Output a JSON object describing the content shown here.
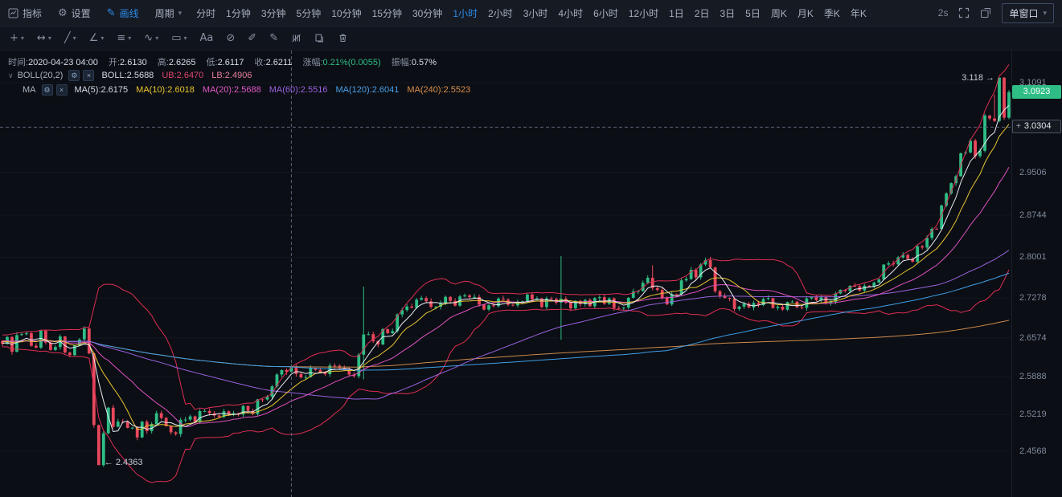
{
  "toolbar": {
    "indicator": "指标",
    "settings": "设置",
    "draw": "画线",
    "period": "周期",
    "periods": [
      "分时",
      "1分钟",
      "3分钟",
      "5分钟",
      "10分钟",
      "15分钟",
      "30分钟",
      "1小时",
      "2小时",
      "3小时",
      "4小时",
      "6小时",
      "12小时",
      "1日",
      "2日",
      "3日",
      "5日",
      "周K",
      "月K",
      "季K",
      "年K"
    ],
    "active_period": "1小时",
    "refresh": "2s",
    "window_mode": "单窗口"
  },
  "icons": {
    "settings": "⚙",
    "draw": "✎",
    "caret": "▾",
    "collapse": "∨",
    "gear_small": "⚙",
    "close_small": "×",
    "crosshair_badge_plus": "+"
  },
  "draw_tools": [
    {
      "name": "crosshair-tool",
      "glyph": "+",
      "caret": true
    },
    {
      "name": "horizontal-line-tool",
      "glyph": "↔",
      "caret": true
    },
    {
      "name": "trend-line-tool",
      "glyph": "╱",
      "caret": true
    },
    {
      "name": "angle-line-tool",
      "glyph": "∠",
      "caret": true
    },
    {
      "name": "parallel-lines-tool",
      "glyph": "≡",
      "caret": true
    },
    {
      "name": "wave-tool",
      "glyph": "∿",
      "caret": true
    },
    {
      "name": "shapes-tool",
      "glyph": "▭",
      "caret": true
    },
    {
      "name": "text-tool",
      "glyph": "Aa",
      "caret": false
    },
    {
      "name": "hide-drawings-tool",
      "glyph": "⊘",
      "caret": false
    },
    {
      "name": "eraser-tool",
      "glyph": "✐",
      "caret": false
    },
    {
      "name": "brush-tool",
      "glyph": "✎",
      "caret": false
    },
    {
      "name": "measure-tool",
      "glyph": "svg:measure",
      "caret": false
    },
    {
      "name": "copy-tool",
      "glyph": "svg:copy",
      "caret": false
    },
    {
      "name": "delete-tool",
      "glyph": "svg:trash",
      "caret": false
    }
  ],
  "info_bar": {
    "time_label": "时间:",
    "time": "2020-04-23 04:00",
    "open_label": "开:",
    "open": "2.6130",
    "high_label": "高:",
    "high": "2.6265",
    "low_label": "低:",
    "low": "2.6117",
    "close_label": "收:",
    "close": "2.6211",
    "change_label": "涨幅:",
    "change": "0.21%(0.0055)",
    "amplitude_label": "振幅:",
    "amplitude": "0.57%"
  },
  "indicator_panel": {
    "boll_title": "BOLL(20,2)",
    "boll_values": [
      {
        "text": "BOLL:2.5688",
        "color": "#d5dae3"
      },
      {
        "text": "UB:2.6470",
        "color": "#e0446e"
      },
      {
        "text": "LB:2.4906",
        "color": "#e87fa0"
      }
    ],
    "ma_title": "MA",
    "ma_values": [
      {
        "text": "MA(5):2.6175",
        "color": "#d5dae3"
      },
      {
        "text": "MA(10):2.6018",
        "color": "#e8c430"
      },
      {
        "text": "MA(20):2.5688",
        "color": "#e058c8"
      },
      {
        "text": "MA(60):2.5516",
        "color": "#9a62e0"
      },
      {
        "text": "MA(120):2.6041",
        "color": "#4a9fe8"
      },
      {
        "text": "MA(240):2.5523",
        "color": "#d98e4a"
      }
    ]
  },
  "chart_data": {
    "type": "candlestick",
    "timeframe": "1小时",
    "candle_count": 210,
    "price_top": 3.1659,
    "price_bottom": 2.3758,
    "axis_labels": [
      "3.1091",
      "2.9506",
      "2.8744",
      "2.8001",
      "2.7278",
      "2.6574",
      "2.5888",
      "2.5219",
      "2.4568"
    ],
    "last_price": "3.0923",
    "last_close": 3.0923,
    "crosshair": {
      "index": 60,
      "price": 3.0304,
      "label": "3.0304"
    },
    "annotations": [
      {
        "type": "high",
        "text": "3.118",
        "arrow": "→",
        "side": "left",
        "index": 207,
        "price": 3.118
      },
      {
        "type": "low",
        "text": "2.4363",
        "arrow": "←",
        "side": "right",
        "index": 20,
        "price": 2.4363
      }
    ],
    "overlays": {
      "ma_windows": [
        5,
        10,
        20,
        60,
        120,
        240
      ],
      "boll_window": 20,
      "boll_mult": 2
    },
    "colors": {
      "up": "#2ebd85",
      "down": "#e9485c",
      "ma5": "#e8ebf0",
      "ma10": "#e8c430",
      "ma20": "#e052c4",
      "ma60": "#9a62e0",
      "ma120": "#3f9fe8",
      "ma240": "#cc8a4c",
      "boll_band": "#dd2e55",
      "crosshair": "#5a6478",
      "grid": "#121720"
    },
    "anchors": [
      [
        0,
        2.655
      ],
      [
        2,
        2.638
      ],
      [
        4,
        2.662
      ],
      [
        6,
        2.642
      ],
      [
        8,
        2.668
      ],
      [
        10,
        2.64
      ],
      [
        12,
        2.655
      ],
      [
        14,
        2.63
      ],
      [
        16,
        2.646
      ],
      [
        17,
        2.628
      ],
      [
        18,
        2.565
      ],
      [
        19,
        2.478
      ],
      [
        20,
        2.45
      ],
      [
        21,
        2.505
      ],
      [
        22,
        2.532
      ],
      [
        23,
        2.498
      ],
      [
        24,
        2.516
      ],
      [
        26,
        2.5
      ],
      [
        28,
        2.478
      ],
      [
        30,
        2.506
      ],
      [
        32,
        2.522
      ],
      [
        34,
        2.508
      ],
      [
        36,
        2.49
      ],
      [
        38,
        2.516
      ],
      [
        40,
        2.508
      ],
      [
        42,
        2.528
      ],
      [
        44,
        2.516
      ],
      [
        46,
        2.532
      ],
      [
        48,
        2.521
      ],
      [
        50,
        2.536
      ],
      [
        52,
        2.528
      ],
      [
        54,
        2.548
      ],
      [
        56,
        2.572
      ],
      [
        58,
        2.594
      ],
      [
        60,
        2.604
      ],
      [
        62,
        2.588
      ],
      [
        64,
        2.606
      ],
      [
        66,
        2.596
      ],
      [
        68,
        2.612
      ],
      [
        70,
        2.6
      ],
      [
        72,
        2.591
      ],
      [
        74,
        2.608
      ],
      [
        75,
        2.64
      ],
      [
        76,
        2.655
      ],
      [
        78,
        2.649
      ],
      [
        80,
        2.672
      ],
      [
        82,
        2.69
      ],
      [
        84,
        2.706
      ],
      [
        86,
        2.718
      ],
      [
        88,
        2.726
      ],
      [
        90,
        2.712
      ],
      [
        92,
        2.728
      ],
      [
        94,
        2.718
      ],
      [
        96,
        2.736
      ],
      [
        98,
        2.722
      ],
      [
        100,
        2.706
      ],
      [
        102,
        2.716
      ],
      [
        104,
        2.726
      ],
      [
        106,
        2.712
      ],
      [
        108,
        2.722
      ],
      [
        109,
        2.736
      ],
      [
        110,
        2.726
      ],
      [
        112,
        2.716
      ],
      [
        114,
        2.728
      ],
      [
        116,
        2.72
      ],
      [
        118,
        2.708
      ],
      [
        120,
        2.722
      ],
      [
        122,
        2.716
      ],
      [
        124,
        2.73
      ],
      [
        126,
        2.72
      ],
      [
        128,
        2.712
      ],
      [
        130,
        2.726
      ],
      [
        132,
        2.736
      ],
      [
        134,
        2.76
      ],
      [
        136,
        2.732
      ],
      [
        138,
        2.722
      ],
      [
        140,
        2.742
      ],
      [
        142,
        2.758
      ],
      [
        144,
        2.775
      ],
      [
        146,
        2.788
      ],
      [
        147,
        2.792
      ],
      [
        148,
        2.76
      ],
      [
        150,
        2.728
      ],
      [
        152,
        2.712
      ],
      [
        154,
        2.722
      ],
      [
        156,
        2.715
      ],
      [
        158,
        2.728
      ],
      [
        160,
        2.718
      ],
      [
        162,
        2.708
      ],
      [
        164,
        2.722
      ],
      [
        166,
        2.715
      ],
      [
        168,
        2.726
      ],
      [
        170,
        2.732
      ],
      [
        172,
        2.722
      ],
      [
        174,
        2.738
      ],
      [
        176,
        2.748
      ],
      [
        178,
        2.742
      ],
      [
        180,
        2.758
      ],
      [
        182,
        2.772
      ],
      [
        184,
        2.79
      ],
      [
        186,
        2.802
      ],
      [
        188,
        2.796
      ],
      [
        190,
        2.812
      ],
      [
        192,
        2.838
      ],
      [
        194,
        2.865
      ],
      [
        196,
        2.905
      ],
      [
        198,
        2.948
      ],
      [
        200,
        2.982
      ],
      [
        201,
        3.01
      ],
      [
        202,
        2.99
      ],
      [
        203,
        3.025
      ],
      [
        204,
        3.052
      ],
      [
        205,
        3.04
      ],
      [
        206,
        3.075
      ],
      [
        207,
        3.105
      ],
      [
        208,
        3.052
      ],
      [
        209,
        3.0923
      ]
    ],
    "special_candles": [
      {
        "index": 20,
        "low": 2.4363
      },
      {
        "index": 75,
        "high": 2.748,
        "low": 2.584
      },
      {
        "index": 116,
        "high": 2.802,
        "low": 2.654
      },
      {
        "index": 135,
        "high": 2.786
      },
      {
        "index": 147,
        "high": 2.801
      },
      {
        "index": 206,
        "high": 3.088
      },
      {
        "index": 207,
        "high": 3.118
      },
      {
        "index": 209,
        "high": 3.096
      }
    ]
  }
}
